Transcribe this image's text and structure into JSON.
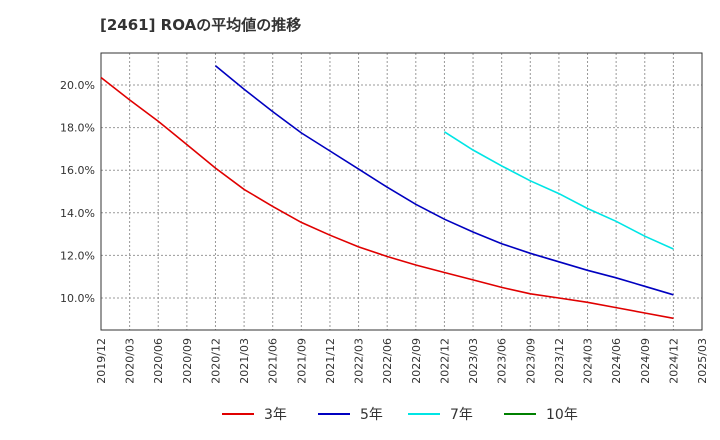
{
  "chart_data": {
    "type": "line",
    "title": "[2461]  ROAの平均値の推移",
    "x_ticks": [
      "2019/12",
      "2020/03",
      "2020/06",
      "2020/09",
      "2020/12",
      "2021/03",
      "2021/06",
      "2021/09",
      "2021/12",
      "2022/03",
      "2022/06",
      "2022/09",
      "2022/12",
      "2023/03",
      "2023/06",
      "2023/09",
      "2023/12",
      "2024/03",
      "2024/06",
      "2024/09",
      "2024/12",
      "2025/03"
    ],
    "y_ticks": [
      "10.0%",
      "12.0%",
      "14.0%",
      "16.0%",
      "18.0%",
      "20.0%"
    ],
    "ylim": [
      8.5,
      21.5
    ],
    "grid": true,
    "legend_position": "bottom",
    "series": [
      {
        "name": "3年",
        "color": "#e00000",
        "x": [
          "2019/12",
          "2020/03",
          "2020/06",
          "2020/09",
          "2020/12",
          "2021/03",
          "2021/06",
          "2021/09",
          "2021/12",
          "2022/03",
          "2022/06",
          "2022/09",
          "2022/12",
          "2023/03",
          "2023/06",
          "2023/09",
          "2023/12",
          "2024/03",
          "2024/06",
          "2024/09",
          "2024/12"
        ],
        "values": [
          20.35,
          19.3,
          18.3,
          17.2,
          16.1,
          15.1,
          14.3,
          13.55,
          12.95,
          12.4,
          11.95,
          11.55,
          11.2,
          10.85,
          10.5,
          10.2,
          10.0,
          9.8,
          9.55,
          9.3,
          9.05
        ]
      },
      {
        "name": "5年",
        "color": "#0000c0",
        "x": [
          "2020/12",
          "2021/03",
          "2021/06",
          "2021/09",
          "2021/12",
          "2022/03",
          "2022/06",
          "2022/09",
          "2022/12",
          "2023/03",
          "2023/06",
          "2023/09",
          "2023/12",
          "2024/03",
          "2024/06",
          "2024/09",
          "2024/12"
        ],
        "values": [
          20.9,
          19.8,
          18.75,
          17.75,
          16.9,
          16.05,
          15.2,
          14.4,
          13.7,
          13.1,
          12.55,
          12.1,
          11.7,
          11.3,
          10.95,
          10.55,
          10.15
        ]
      },
      {
        "name": "7年",
        "color": "#00e5e5",
        "x": [
          "2022/12",
          "2023/03",
          "2023/06",
          "2023/09",
          "2023/12",
          "2024/03",
          "2024/06",
          "2024/09",
          "2024/12"
        ],
        "values": [
          17.8,
          16.95,
          16.2,
          15.5,
          14.9,
          14.2,
          13.6,
          12.9,
          12.3
        ]
      },
      {
        "name": "10年",
        "color": "#008000",
        "x": [],
        "values": []
      }
    ]
  }
}
